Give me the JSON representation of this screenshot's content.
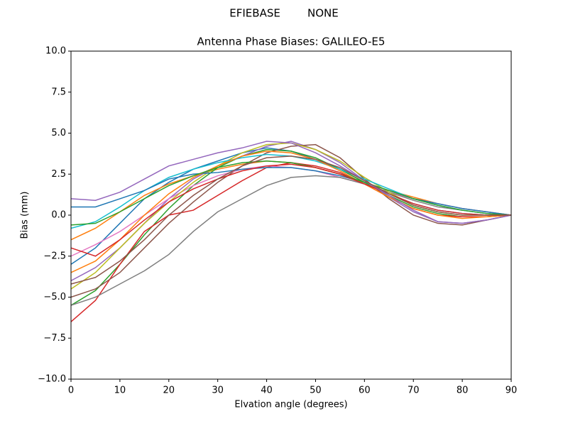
{
  "chart_data": {
    "type": "line",
    "suptitle": "EFIEBASE        NONE",
    "title": "Antenna Phase Biases: GALILEO-E5",
    "x_label": "Elvation angle (degrees)",
    "y_label": "Bias (mm)",
    "x": [
      0,
      5,
      10,
      15,
      20,
      25,
      30,
      35,
      40,
      45,
      50,
      55,
      60,
      65,
      70,
      75,
      80,
      85,
      90
    ],
    "xlim": [
      0,
      90
    ],
    "xticks": [
      0,
      10,
      20,
      30,
      40,
      50,
      60,
      70,
      80,
      90
    ],
    "ylim": [
      -10,
      10
    ],
    "yticks": [
      {
        "value": -10,
        "label": "−10.0"
      },
      {
        "value": -7.5,
        "label": "−7.5"
      },
      {
        "value": -5,
        "label": "−5.0"
      },
      {
        "value": -2.5,
        "label": "−2.5"
      },
      {
        "value": 0,
        "label": "0.0"
      },
      {
        "value": 2.5,
        "label": "2.5"
      },
      {
        "value": 5,
        "label": "5.0"
      },
      {
        "value": 7.5,
        "label": "7.5"
      },
      {
        "value": 10,
        "label": "10.0"
      }
    ],
    "series": [
      {
        "color": "#1f77b4",
        "values": [
          -3.0,
          -2.0,
          -0.5,
          1.0,
          2.0,
          2.8,
          3.3,
          3.8,
          4.1,
          3.9,
          3.4,
          2.8,
          2.0,
          1.3,
          0.7,
          0.3,
          0.1,
          0.0,
          0
        ]
      },
      {
        "color": "#ff7f0e",
        "values": [
          -1.5,
          -0.8,
          0.2,
          1.2,
          1.9,
          2.4,
          2.8,
          3.1,
          3.3,
          3.2,
          2.9,
          2.5,
          2.0,
          1.5,
          1.1,
          0.7,
          0.4,
          0.2,
          0
        ]
      },
      {
        "color": "#2ca02c",
        "values": [
          -5.5,
          -4.6,
          -3.0,
          -1.2,
          0.4,
          1.8,
          2.9,
          3.6,
          4.0,
          3.9,
          3.5,
          2.8,
          2.0,
          1.2,
          0.5,
          0.1,
          -0.1,
          -0.1,
          0
        ]
      },
      {
        "color": "#d62728",
        "values": [
          -6.5,
          -5.2,
          -3.0,
          -1.0,
          0.0,
          0.3,
          1.2,
          2.1,
          2.9,
          3.2,
          3.0,
          2.6,
          1.9,
          1.1,
          0.4,
          0.0,
          -0.1,
          -0.1,
          0
        ]
      },
      {
        "color": "#9467bd",
        "values": [
          -4.0,
          -3.2,
          -2.0,
          -0.5,
          1.0,
          2.2,
          3.0,
          3.6,
          4.2,
          4.5,
          4.0,
          3.2,
          2.1,
          1.1,
          0.2,
          -0.4,
          -0.5,
          -0.3,
          0
        ]
      },
      {
        "color": "#8c564b",
        "values": [
          -5.0,
          -4.5,
          -3.5,
          -2.0,
          -0.5,
          0.8,
          2.0,
          3.0,
          3.8,
          4.2,
          4.3,
          3.5,
          2.2,
          1.0,
          0.0,
          -0.5,
          -0.6,
          -0.3,
          0
        ]
      },
      {
        "color": "#e377c2",
        "values": [
          -2.5,
          -1.8,
          -1.0,
          0.0,
          1.0,
          1.8,
          2.4,
          2.8,
          3.0,
          2.9,
          2.7,
          2.3,
          1.9,
          1.4,
          1.0,
          0.7,
          0.4,
          0.2,
          0
        ]
      },
      {
        "color": "#7f7f7f",
        "values": [
          -5.5,
          -5.0,
          -4.2,
          -3.4,
          -2.4,
          -1.0,
          0.2,
          1.0,
          1.8,
          2.3,
          2.4,
          2.3,
          1.9,
          1.4,
          0.9,
          0.5,
          0.3,
          0.1,
          0
        ]
      },
      {
        "color": "#bcbd22",
        "values": [
          -4.5,
          -3.5,
          -2.0,
          -0.5,
          0.8,
          2.0,
          3.0,
          3.8,
          4.3,
          4.4,
          4.0,
          3.3,
          2.3,
          1.4,
          0.6,
          0.2,
          0.0,
          0.0,
          0
        ]
      },
      {
        "color": "#17becf",
        "values": [
          -0.8,
          -0.4,
          0.5,
          1.5,
          2.3,
          2.8,
          3.2,
          3.5,
          3.7,
          3.6,
          3.3,
          2.8,
          2.2,
          1.6,
          1.0,
          0.6,
          0.3,
          0.1,
          0
        ]
      },
      {
        "color": "#1f77b4",
        "values": [
          0.5,
          0.5,
          1.0,
          1.5,
          2.2,
          2.5,
          2.6,
          2.8,
          2.9,
          2.9,
          2.7,
          2.4,
          2.0,
          1.5,
          1.0,
          0.7,
          0.4,
          0.2,
          0
        ]
      },
      {
        "color": "#ff7f0e",
        "values": [
          -3.5,
          -2.8,
          -1.5,
          0.0,
          1.3,
          2.3,
          3.0,
          3.6,
          3.9,
          3.8,
          3.4,
          2.7,
          1.9,
          1.1,
          0.4,
          0.0,
          -0.2,
          -0.1,
          0
        ]
      },
      {
        "color": "#2ca02c",
        "values": [
          -0.6,
          -0.5,
          0.2,
          1.0,
          1.8,
          2.4,
          2.9,
          3.2,
          3.3,
          3.2,
          2.9,
          2.5,
          2.0,
          1.5,
          1.0,
          0.6,
          0.3,
          0.1,
          0
        ]
      },
      {
        "color": "#d62728",
        "values": [
          -2.0,
          -2.5,
          -1.5,
          -0.3,
          0.8,
          1.6,
          2.2,
          2.7,
          3.0,
          3.1,
          2.9,
          2.5,
          1.9,
          1.3,
          0.7,
          0.3,
          0.1,
          0.0,
          0
        ]
      },
      {
        "color": "#9467bd",
        "values": [
          1.0,
          0.9,
          1.4,
          2.2,
          3.0,
          3.4,
          3.8,
          4.1,
          4.5,
          4.4,
          3.8,
          3.0,
          2.1,
          1.2,
          0.3,
          -0.4,
          -0.5,
          -0.3,
          0
        ]
      },
      {
        "color": "#8c564b",
        "values": [
          -4.2,
          -3.8,
          -2.8,
          -1.5,
          0.0,
          1.2,
          2.2,
          3.0,
          3.5,
          3.6,
          3.4,
          2.9,
          2.1,
          1.3,
          0.6,
          0.2,
          0.0,
          0.0,
          0
        ]
      }
    ]
  }
}
